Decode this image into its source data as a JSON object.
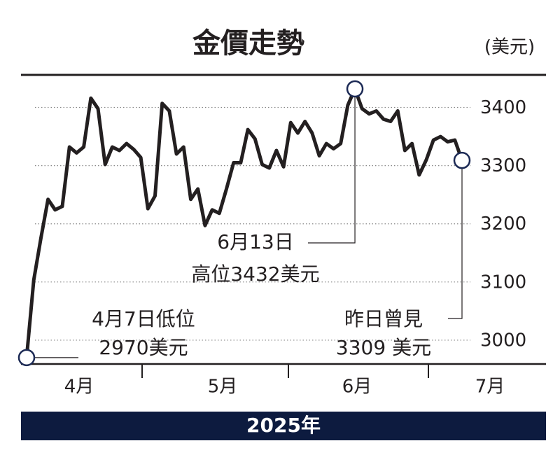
{
  "chart_data": {
    "type": "line",
    "title": "金價走勢",
    "unit": "(美元)",
    "values": [
      2970,
      3103,
      3175,
      3242,
      3224,
      3230,
      3332,
      3322,
      3332,
      3416,
      3398,
      3302,
      3332,
      3326,
      3338,
      3328,
      3314,
      3226,
      3248,
      3407,
      3394,
      3320,
      3332,
      3242,
      3260,
      3197,
      3224,
      3218,
      3260,
      3305,
      3305,
      3362,
      3346,
      3302,
      3296,
      3326,
      3298,
      3374,
      3356,
      3376,
      3356,
      3317,
      3338,
      3329,
      3338,
      3404,
      3432,
      3398,
      3389,
      3394,
      3380,
      3376,
      3394,
      3326,
      3338,
      3284,
      3310,
      3344,
      3350,
      3341,
      3344,
      3309
    ],
    "color": "#231f20",
    "ylim": [
      2959,
      3456
    ],
    "yticks": [
      3000,
      3100,
      3200,
      3300,
      3400
    ],
    "grid": true,
    "month_labels": [
      "4月",
      "5月",
      "6月",
      "7月"
    ],
    "year": "2025年",
    "annotations": [
      {
        "point": 46,
        "lines": [
          "6月13日",
          "高位3432美元"
        ]
      },
      {
        "point": 0,
        "lines": [
          "4月7日低位",
          "2970美元"
        ]
      },
      {
        "point": 61,
        "lines": [
          "昨日曾見",
          "3309 美元"
        ]
      }
    ]
  }
}
